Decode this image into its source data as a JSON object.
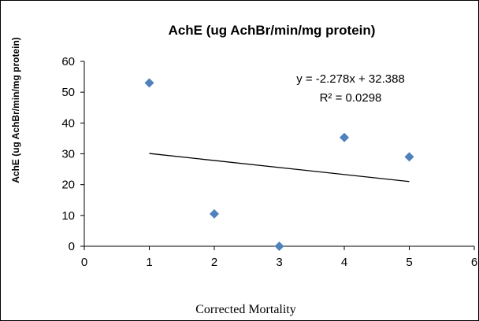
{
  "chart_data": {
    "type": "scatter",
    "title": "AchE (ug AchBr/min/mg protein)",
    "xlabel": "Corrected Mortality",
    "ylabel": "AchE (ug AchBr/min/mg protein)",
    "xlim": [
      0,
      6
    ],
    "ylim": [
      0,
      60
    ],
    "xticks": [
      0,
      1,
      2,
      3,
      4,
      5,
      6
    ],
    "yticks": [
      0,
      10,
      20,
      30,
      40,
      50,
      60
    ],
    "grid": false,
    "legend": "none",
    "series": [
      {
        "marker": "diamond",
        "color": "#4f81bd",
        "points": [
          {
            "x": 1,
            "y": 53
          },
          {
            "x": 2,
            "y": 10.5
          },
          {
            "x": 3,
            "y": 0
          },
          {
            "x": 4,
            "y": 35.3
          },
          {
            "x": 5,
            "y": 29
          }
        ]
      }
    ],
    "trendline": {
      "type": "linear",
      "slope": -2.278,
      "intercept": 32.388,
      "x_range": [
        1,
        5
      ],
      "color": "#000000",
      "equation_label": "y = -2.278x + 32.388",
      "r2_label": "R² = 0.0298"
    }
  }
}
